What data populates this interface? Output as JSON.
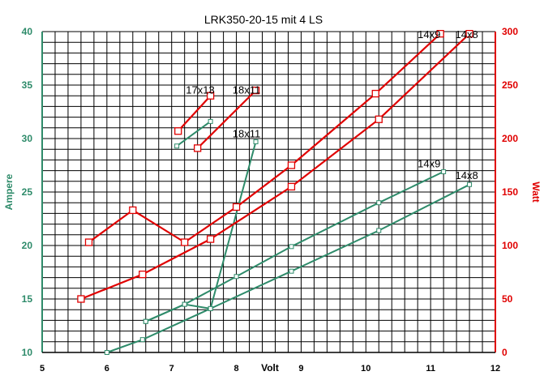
{
  "chart_data": {
    "type": "line",
    "title": "LRK350-20-15 mit 4 LS",
    "xlabel": "Volt",
    "ylabel_left": "Ampere",
    "ylabel_right": "Watt",
    "xlim": [
      5,
      12
    ],
    "ylim_left": [
      10,
      40
    ],
    "ylim_right": [
      0,
      300
    ],
    "xticks": [
      "5",
      "6",
      "7",
      "8",
      "9",
      "10",
      "11",
      "12"
    ],
    "yticks_left": [
      "10",
      "15",
      "20",
      "25",
      "30",
      "35",
      "40"
    ],
    "yticks_right": [
      "0",
      "50",
      "100",
      "150",
      "200",
      "250",
      "300"
    ],
    "grid": true,
    "colors": {
      "ampere": "#2e8b6a",
      "watt": "#e00000"
    },
    "series": [
      {
        "name": "17x13",
        "axis": "left",
        "points": [
          [
            7.08,
            29.3
          ],
          [
            7.6,
            31.6
          ]
        ]
      },
      {
        "name": "18x11",
        "axis": "left",
        "points": [
          [
            6.6,
            12.9
          ],
          [
            7.2,
            14.5
          ],
          [
            7.6,
            14.1
          ],
          [
            8.3,
            29.7
          ]
        ]
      },
      {
        "name": "14x9",
        "axis": "left",
        "points": [
          [
            6.6,
            12.9
          ],
          [
            7.2,
            14.5
          ],
          [
            8.0,
            17.1
          ],
          [
            8.85,
            19.9
          ],
          [
            10.2,
            24.0
          ],
          [
            11.2,
            26.9
          ]
        ]
      },
      {
        "name": "14x8",
        "axis": "left",
        "points": [
          [
            6.0,
            10.0
          ],
          [
            6.55,
            11.2
          ],
          [
            7.6,
            14.1
          ],
          [
            8.85,
            17.6
          ],
          [
            10.2,
            21.4
          ],
          [
            11.6,
            25.7
          ]
        ]
      },
      {
        "name": "17x13",
        "axis": "right",
        "points": [
          [
            7.1,
            207
          ],
          [
            7.6,
            240
          ]
        ]
      },
      {
        "name": "18x11",
        "axis": "right",
        "points": [
          [
            7.4,
            191
          ],
          [
            8.3,
            245
          ]
        ]
      },
      {
        "name": "14x9",
        "axis": "right",
        "points": [
          [
            5.72,
            103
          ],
          [
            6.4,
            133
          ],
          [
            7.2,
            103
          ],
          [
            8.0,
            136
          ],
          [
            8.85,
            175
          ],
          [
            10.15,
            242
          ],
          [
            11.15,
            298
          ]
        ]
      },
      {
        "name": "14x8",
        "axis": "right",
        "points": [
          [
            5.6,
            50
          ],
          [
            6.55,
            73
          ],
          [
            7.6,
            106
          ],
          [
            8.85,
            155
          ],
          [
            10.2,
            218
          ],
          [
            11.6,
            298
          ]
        ]
      }
    ],
    "annotations": [
      {
        "text": "17x13",
        "x": 7.22,
        "y": 34.2,
        "axis": "left"
      },
      {
        "text": "18x11",
        "x": 7.94,
        "y": 34.2,
        "axis": "left"
      },
      {
        "text": "18x11",
        "x": 7.94,
        "y": 30.1,
        "axis": "left"
      },
      {
        "text": "14x9",
        "x": 10.8,
        "y": 39.4,
        "axis": "left"
      },
      {
        "text": "14x8",
        "x": 11.38,
        "y": 39.4,
        "axis": "left"
      },
      {
        "text": "14x9",
        "x": 10.8,
        "y": 27.3,
        "axis": "left"
      },
      {
        "text": "14x8",
        "x": 11.38,
        "y": 26.2,
        "axis": "left"
      }
    ]
  }
}
